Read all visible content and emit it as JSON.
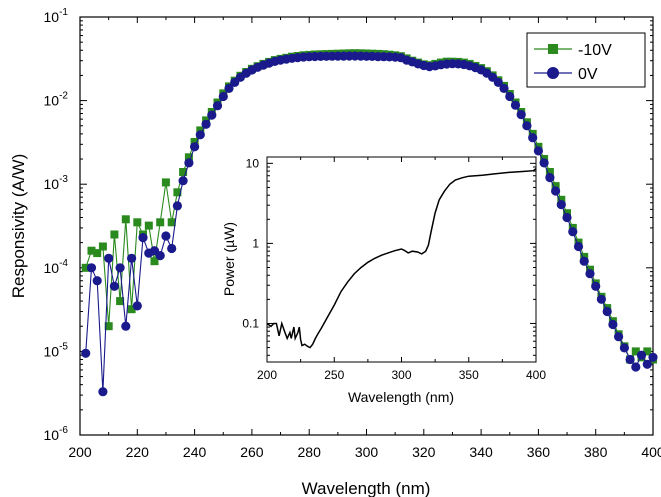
{
  "chart_data": [
    {
      "type": "scatter",
      "title": "",
      "xlabel": "Wavelength (nm)",
      "ylabel": "Responsivity (A/W)",
      "x_scale": "linear",
      "y_scale": "log",
      "xlim": [
        200,
        400
      ],
      "ylim": [
        1e-06,
        0.1
      ],
      "x_ticks": [
        "200",
        "220",
        "240",
        "260",
        "280",
        "300",
        "320",
        "340",
        "360",
        "380",
        "400"
      ],
      "y_ticks": [
        {
          "base": "10",
          "exp": "-6"
        },
        {
          "base": "10",
          "exp": "-5"
        },
        {
          "base": "10",
          "exp": "-4"
        },
        {
          "base": "10",
          "exp": "-3"
        },
        {
          "base": "10",
          "exp": "-2"
        },
        {
          "base": "10",
          "exp": "-1"
        }
      ],
      "grid": false,
      "legend_position": "top-right",
      "series": [
        {
          "name": "-10V",
          "color": "#2a8a1e",
          "marker": "square",
          "points": [
            [
              202,
              0.0001
            ],
            [
              204,
              0.00016
            ],
            [
              206,
              0.00015
            ],
            [
              208,
              0.00018
            ],
            [
              210,
              2e-05
            ],
            [
              212,
              0.00025
            ],
            [
              214,
              4e-05
            ],
            [
              216,
              0.00038
            ],
            [
              218,
              3.2e-05
            ],
            [
              220,
              0.00035
            ],
            [
              222,
              0.00025
            ],
            [
              224,
              0.00032
            ],
            [
              226,
              0.00012
            ],
            [
              228,
              0.00035
            ],
            [
              230,
              0.00105
            ],
            [
              232,
              0.00035
            ],
            [
              234,
              0.0008
            ],
            [
              236,
              0.0014
            ],
            [
              238,
              0.0021
            ],
            [
              240,
              0.0032
            ],
            [
              242,
              0.0044
            ],
            [
              244,
              0.0058
            ],
            [
              246,
              0.0073
            ],
            [
              248,
              0.0095
            ],
            [
              250,
              0.0122
            ],
            [
              252,
              0.0148
            ],
            [
              254,
              0.0173
            ],
            [
              256,
              0.0198
            ],
            [
              258,
              0.022
            ],
            [
              260,
              0.024
            ],
            [
              262,
              0.0258
            ],
            [
              264,
              0.0275
            ],
            [
              266,
              0.029
            ],
            [
              268,
              0.0305
            ],
            [
              270,
              0.0315
            ],
            [
              272,
              0.0325
            ],
            [
              274,
              0.0335
            ],
            [
              276,
              0.0342
            ],
            [
              278,
              0.0348
            ],
            [
              280,
              0.0352
            ],
            [
              282,
              0.0356
            ],
            [
              284,
              0.0358
            ],
            [
              286,
              0.036
            ],
            [
              288,
              0.0362
            ],
            [
              290,
              0.0364
            ],
            [
              292,
              0.0366
            ],
            [
              294,
              0.0368
            ],
            [
              296,
              0.0369
            ],
            [
              298,
              0.0368
            ],
            [
              300,
              0.0366
            ],
            [
              302,
              0.0364
            ],
            [
              304,
              0.0362
            ],
            [
              306,
              0.0359
            ],
            [
              308,
              0.0354
            ],
            [
              310,
              0.0348
            ],
            [
              312,
              0.034
            ],
            [
              314,
              0.032
            ],
            [
              316,
              0.03
            ],
            [
              318,
              0.0285
            ],
            [
              320,
              0.0272
            ],
            [
              322,
              0.0265
            ],
            [
              324,
              0.0275
            ],
            [
              326,
              0.0285
            ],
            [
              328,
              0.0292
            ],
            [
              330,
              0.0292
            ],
            [
              332,
              0.029
            ],
            [
              334,
              0.0285
            ],
            [
              336,
              0.0275
            ],
            [
              338,
              0.026
            ],
            [
              340,
              0.0245
            ],
            [
              342,
              0.0225
            ],
            [
              344,
              0.02
            ],
            [
              346,
              0.0175
            ],
            [
              348,
              0.015
            ],
            [
              350,
              0.012
            ],
            [
              352,
              0.0095
            ],
            [
              354,
              0.0073
            ],
            [
              356,
              0.0055
            ],
            [
              358,
              0.004
            ],
            [
              360,
              0.0028
            ],
            [
              362,
              0.002
            ],
            [
              364,
              0.0014
            ],
            [
              366,
              0.00095
            ],
            [
              368,
              0.00065
            ],
            [
              370,
              0.00045
            ],
            [
              372,
              0.0003
            ],
            [
              374,
              0.0002
            ],
            [
              376,
              0.000135
            ],
            [
              378,
              9.5e-05
            ],
            [
              380,
              6.5e-05
            ],
            [
              382,
              4.5e-05
            ],
            [
              384,
              3.3e-05
            ],
            [
              386,
              2.3e-05
            ],
            [
              388,
              1.6e-05
            ],
            [
              390,
              1.15e-05
            ],
            [
              392,
              8e-06
            ],
            [
              394,
              1e-05
            ],
            [
              396,
              8.5e-06
            ],
            [
              398,
              1e-05
            ],
            [
              400,
              8e-06
            ]
          ]
        },
        {
          "name": "0V",
          "color": "#1a1a8c",
          "marker": "circle",
          "points": [
            [
              202,
              9.5e-06
            ],
            [
              204,
              0.0001
            ],
            [
              206,
              7e-05
            ],
            [
              208,
              3.3e-06
            ],
            [
              210,
              0.00013
            ],
            [
              212,
              6e-05
            ],
            [
              214,
              0.0001
            ],
            [
              216,
              2e-05
            ],
            [
              218,
              0.00013
            ],
            [
              220,
              3.5e-05
            ],
            [
              222,
              0.00023
            ],
            [
              224,
              0.00015
            ],
            [
              226,
              0.00016
            ],
            [
              228,
              0.00014
            ],
            [
              230,
              0.00024
            ],
            [
              232,
              0.00017
            ],
            [
              234,
              0.00055
            ],
            [
              236,
              0.0011
            ],
            [
              238,
              0.0018
            ],
            [
              240,
              0.0028
            ],
            [
              242,
              0.0039
            ],
            [
              244,
              0.0052
            ],
            [
              246,
              0.0067
            ],
            [
              248,
              0.0087
            ],
            [
              250,
              0.0112
            ],
            [
              252,
              0.014
            ],
            [
              254,
              0.0165
            ],
            [
              256,
              0.019
            ],
            [
              258,
              0.0212
            ],
            [
              260,
              0.0232
            ],
            [
              262,
              0.025
            ],
            [
              264,
              0.0266
            ],
            [
              266,
              0.0281
            ],
            [
              268,
              0.0294
            ],
            [
              270,
              0.0305
            ],
            [
              272,
              0.0314
            ],
            [
              274,
              0.0321
            ],
            [
              276,
              0.0327
            ],
            [
              278,
              0.0332
            ],
            [
              280,
              0.0335
            ],
            [
              282,
              0.0337
            ],
            [
              284,
              0.0338
            ],
            [
              286,
              0.0339
            ],
            [
              288,
              0.034
            ],
            [
              290,
              0.0341
            ],
            [
              292,
              0.0341
            ],
            [
              294,
              0.0342
            ],
            [
              296,
              0.0342
            ],
            [
              298,
              0.0341
            ],
            [
              300,
              0.0339
            ],
            [
              302,
              0.0338
            ],
            [
              304,
              0.0336
            ],
            [
              306,
              0.0335
            ],
            [
              308,
              0.0333
            ],
            [
              310,
              0.0331
            ],
            [
              312,
              0.0326
            ],
            [
              314,
              0.0305
            ],
            [
              316,
              0.029
            ],
            [
              318,
              0.0275
            ],
            [
              320,
              0.0263
            ],
            [
              322,
              0.0255
            ],
            [
              324,
              0.026
            ],
            [
              326,
              0.0268
            ],
            [
              328,
              0.0274
            ],
            [
              330,
              0.0276
            ],
            [
              332,
              0.0275
            ],
            [
              334,
              0.027
            ],
            [
              336,
              0.0261
            ],
            [
              338,
              0.0248
            ],
            [
              340,
              0.0233
            ],
            [
              342,
              0.0213
            ],
            [
              344,
              0.019
            ],
            [
              346,
              0.0165
            ],
            [
              348,
              0.014
            ],
            [
              350,
              0.0112
            ],
            [
              352,
              0.0088
            ],
            [
              354,
              0.0068
            ],
            [
              356,
              0.005
            ],
            [
              358,
              0.0036
            ],
            [
              360,
              0.0025
            ],
            [
              362,
              0.0018
            ],
            [
              364,
              0.0012
            ],
            [
              366,
              0.00083
            ],
            [
              368,
              0.00057
            ],
            [
              370,
              0.0004
            ],
            [
              372,
              0.00027
            ],
            [
              374,
              0.00018
            ],
            [
              376,
              0.00012
            ],
            [
              378,
              8.5e-05
            ],
            [
              380,
              6e-05
            ],
            [
              382,
              4.2e-05
            ],
            [
              384,
              3e-05
            ],
            [
              386,
              2.1e-05
            ],
            [
              388,
              1.5e-05
            ],
            [
              390,
              1.1e-05
            ],
            [
              392,
              8e-06
            ],
            [
              394,
              6.5e-06
            ],
            [
              396,
              9e-06
            ],
            [
              398,
              7e-06
            ],
            [
              400,
              8.5e-06
            ]
          ]
        }
      ]
    },
    {
      "type": "line",
      "title": "",
      "xlabel": "Wavelength (nm)",
      "ylabel": "Power (µW)",
      "x_scale": "linear",
      "y_scale": "log",
      "xlim": [
        200,
        400
      ],
      "ylim": [
        0.033,
        12
      ],
      "x_ticks": [
        "200",
        "250",
        "300",
        "350",
        "400"
      ],
      "y_ticks": [
        {
          "value": 0.1,
          "label": "0.1"
        },
        {
          "value": 1,
          "label": "1"
        },
        {
          "value": 10,
          "label": "10"
        }
      ],
      "grid": false,
      "series": [
        {
          "color": "#000000",
          "points": [
            [
              200,
              0.1
            ],
            [
              203,
              0.092
            ],
            [
              205,
              0.1
            ],
            [
              207,
              0.1
            ],
            [
              209,
              0.07
            ],
            [
              211,
              0.1
            ],
            [
              213,
              0.08
            ],
            [
              215,
              0.065
            ],
            [
              217,
              0.077
            ],
            [
              218,
              0.065
            ],
            [
              220,
              0.09
            ],
            [
              221,
              0.065
            ],
            [
              223,
              0.077
            ],
            [
              224,
              0.09
            ],
            [
              225,
              0.063
            ],
            [
              226,
              0.053
            ],
            [
              228,
              0.055
            ],
            [
              230,
              0.052
            ],
            [
              232,
              0.05
            ],
            [
              234,
              0.055
            ],
            [
              236,
              0.065
            ],
            [
              238,
              0.075
            ],
            [
              240,
              0.085
            ],
            [
              245,
              0.12
            ],
            [
              250,
              0.17
            ],
            [
              255,
              0.25
            ],
            [
              260,
              0.33
            ],
            [
              265,
              0.42
            ],
            [
              270,
              0.5
            ],
            [
              275,
              0.58
            ],
            [
              280,
              0.65
            ],
            [
              285,
              0.71
            ],
            [
              290,
              0.76
            ],
            [
              295,
              0.81
            ],
            [
              300,
              0.85
            ],
            [
              302,
              0.82
            ],
            [
              305,
              0.76
            ],
            [
              308,
              0.8
            ],
            [
              312,
              0.78
            ],
            [
              315,
              0.74
            ],
            [
              318,
              0.8
            ],
            [
              320,
              0.95
            ],
            [
              322,
              1.4
            ],
            [
              325,
              2.4
            ],
            [
              328,
              3.5
            ],
            [
              332,
              4.5
            ],
            [
              336,
              5.5
            ],
            [
              340,
              6.2
            ],
            [
              345,
              6.6
            ],
            [
              350,
              6.9
            ],
            [
              360,
              7.1
            ],
            [
              370,
              7.4
            ],
            [
              380,
              7.7
            ],
            [
              390,
              7.9
            ],
            [
              398,
              8.1
            ],
            [
              400,
              8.6
            ]
          ]
        }
      ]
    }
  ]
}
